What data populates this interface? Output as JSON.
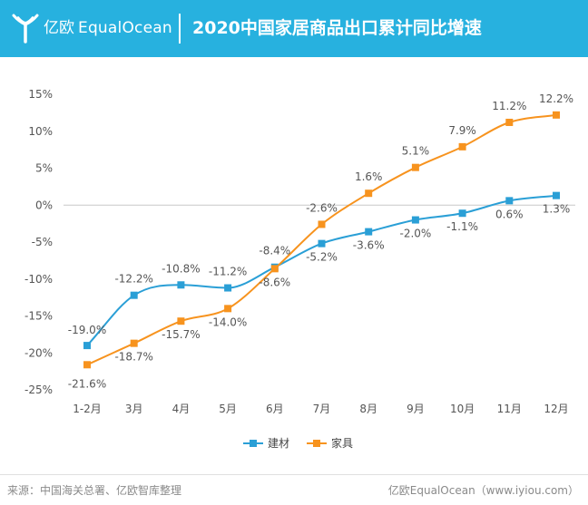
{
  "header": {
    "brand_cn": "亿欧",
    "brand_en": "EqualOcean",
    "title": "2020中国家居商品出口累计同比增速"
  },
  "footer": {
    "source": "来源：中国海关总署、亿欧智库整理",
    "credit": "亿欧EqualOcean（www.iyiou.com）"
  },
  "colors": {
    "header_bg": "#27b1df",
    "series_jiancai": "#2a9fd6",
    "series_jiaju": "#f7931e"
  },
  "chart_data": {
    "type": "line",
    "title": "2020中国家居商品出口累计同比增速",
    "x": [
      "1-2月",
      "3月",
      "4月",
      "5月",
      "6月",
      "7月",
      "8月",
      "9月",
      "10月",
      "11月",
      "12月"
    ],
    "yticks": [
      "15%",
      "10%",
      "5%",
      "0%",
      "-5%",
      "-10%",
      "-15%",
      "-20%",
      "-25%"
    ],
    "ylim": [
      -25,
      15
    ],
    "unit": "%",
    "grid": false,
    "legend_position": "bottom-center",
    "series": [
      {
        "name": "建材",
        "color": "#2a9fd6",
        "values": [
          -19.0,
          -12.2,
          -10.8,
          -11.2,
          -8.4,
          -5.2,
          -3.6,
          -2.0,
          -1.1,
          0.6,
          1.3
        ],
        "labels": [
          "-19.0%",
          "-12.2%",
          "-10.8%",
          "-11.2%",
          "-8.4%",
          "-5.2%",
          "-3.6%",
          "-2.0%",
          "-1.1%",
          "0.6%",
          "1.3%"
        ]
      },
      {
        "name": "家具",
        "color": "#f7931e",
        "values": [
          -21.6,
          -18.7,
          -15.7,
          -14.0,
          -8.6,
          -2.6,
          1.6,
          5.1,
          7.9,
          11.2,
          12.2
        ],
        "labels": [
          "-21.6%",
          "-18.7%",
          "-15.7%",
          "-14.0%",
          "-8.6%",
          "-2.6%",
          "1.6%",
          "5.1%",
          "7.9%",
          "11.2%",
          "12.2%"
        ]
      }
    ]
  }
}
